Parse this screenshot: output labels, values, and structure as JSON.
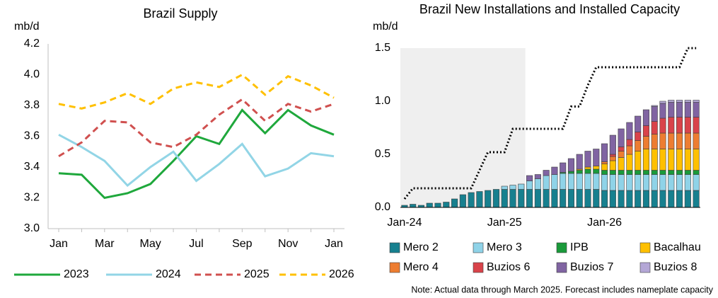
{
  "chart_data": [
    {
      "type": "line",
      "title": "Brazil Supply",
      "y_label": "mb/d",
      "categories": [
        "Jan",
        null,
        "Mar",
        null,
        "May",
        null,
        "Jul",
        null,
        "Sep",
        null,
        "Nov",
        null,
        "Jan"
      ],
      "ylim": [
        3.0,
        4.2
      ],
      "yticks": [
        {
          "value": 3.0,
          "label": "3.0"
        },
        3.2,
        3.4,
        3.6,
        3.8,
        {
          "value": 4.0,
          "label": "4.0"
        },
        4.2
      ],
      "legend": "bottom",
      "series": [
        {
          "name": "2023",
          "color": "#1fa83c",
          "dash": "solid",
          "values": [
            3.36,
            3.35,
            3.2,
            3.23,
            3.29,
            3.44,
            3.6,
            3.55,
            3.77,
            3.62,
            3.77,
            3.67,
            3.61
          ]
        },
        {
          "name": "2024",
          "color": "#92d5e6",
          "dash": "solid",
          "values": [
            3.61,
            3.53,
            3.44,
            3.28,
            3.4,
            3.5,
            3.31,
            3.42,
            3.55,
            3.34,
            3.39,
            3.49,
            3.47
          ]
        },
        {
          "name": "2025",
          "color": "#d0504f",
          "dash": "dashed",
          "values": [
            3.47,
            3.56,
            3.7,
            3.69,
            3.56,
            3.53,
            3.61,
            3.74,
            3.84,
            3.7,
            3.81,
            3.76,
            3.81
          ]
        },
        {
          "name": "2026",
          "color": "#ffc000",
          "dash": "dashed",
          "values": [
            3.81,
            3.78,
            3.82,
            3.88,
            3.81,
            3.91,
            3.95,
            3.92,
            4.0,
            3.87,
            3.99,
            3.93,
            3.85
          ]
        }
      ]
    },
    {
      "type": "bar",
      "stacked": true,
      "title": "Brazil New Installations and Installed Capacity",
      "y_label": "mb/d",
      "note": "Note: Actual data through March 2025. Forecast includes nameplate capacity",
      "categories": [
        "Jan-24",
        null,
        null,
        null,
        null,
        null,
        null,
        null,
        null,
        null,
        null,
        null,
        "Jan-25",
        null,
        null,
        null,
        null,
        null,
        null,
        null,
        null,
        null,
        null,
        null,
        "Jan-26",
        null,
        null,
        null,
        null,
        null,
        null,
        null,
        null,
        null,
        null,
        null
      ],
      "ylim": [
        0,
        1.5
      ],
      "yticks": [
        {
          "value": 0,
          "label": "0.0"
        },
        0.5,
        {
          "value": 1.0,
          "label": "1.0"
        },
        1.5
      ],
      "legend": "bottom",
      "series": [
        {
          "name": "Mero 2",
          "color": "#17808f",
          "values": [
            0.02,
            0.03,
            0.02,
            0.04,
            0.04,
            0.05,
            0.08,
            0.12,
            0.14,
            0.15,
            0.16,
            0.17,
            0.17,
            0.17,
            0.17,
            0.17,
            0.17,
            0.17,
            0.17,
            0.17,
            0.17,
            0.17,
            0.17,
            0.17,
            0.16,
            0.16,
            0.16,
            0.16,
            0.16,
            0.16,
            0.16,
            0.16,
            0.16,
            0.16,
            0.16,
            0.16
          ]
        },
        {
          "name": "Mero 3",
          "color": "#8fd3e8",
          "values": [
            0,
            0,
            0,
            0,
            0,
            0,
            0,
            0,
            0,
            0,
            0,
            0,
            0.03,
            0.04,
            0.05,
            0.08,
            0.1,
            0.13,
            0.14,
            0.15,
            0.15,
            0.15,
            0.15,
            0.15,
            0.15,
            0.15,
            0.15,
            0.15,
            0.15,
            0.15,
            0.15,
            0.15,
            0.15,
            0.15,
            0.15,
            0.15
          ]
        },
        {
          "name": "IPB",
          "color": "#1a9a3a",
          "values": [
            0,
            0,
            0,
            0,
            0,
            0,
            0,
            0,
            0,
            0,
            0,
            0,
            0,
            0,
            0,
            0,
            0,
            0,
            0,
            0.01,
            0.02,
            0.03,
            0.04,
            0.04,
            0.04,
            0.04,
            0.04,
            0.04,
            0.04,
            0.04,
            0.04,
            0.04,
            0.04,
            0.04,
            0.04,
            0.04
          ]
        },
        {
          "name": "Bacalhau",
          "color": "#ffc000",
          "values": [
            0,
            0,
            0,
            0,
            0,
            0,
            0,
            0,
            0,
            0,
            0,
            0,
            0,
            0,
            0,
            0,
            0,
            0,
            0,
            0,
            0,
            0.01,
            0.02,
            0.03,
            0.06,
            0.09,
            0.12,
            0.15,
            0.18,
            0.2,
            0.2,
            0.2,
            0.2,
            0.2,
            0.2,
            0.2
          ]
        },
        {
          "name": "Mero 4",
          "color": "#ed7d31",
          "values": [
            0,
            0,
            0,
            0,
            0,
            0,
            0,
            0,
            0,
            0,
            0,
            0,
            0,
            0,
            0,
            0,
            0,
            0,
            0,
            0,
            0,
            0,
            0,
            0,
            0.02,
            0.04,
            0.06,
            0.08,
            0.1,
            0.12,
            0.14,
            0.15,
            0.15,
            0.15,
            0.15,
            0.15
          ]
        },
        {
          "name": "Buzios 6",
          "color": "#d9434a",
          "values": [
            0,
            0,
            0,
            0,
            0,
            0,
            0,
            0,
            0,
            0,
            0,
            0,
            0,
            0,
            0,
            0,
            0,
            0,
            0,
            0,
            0,
            0,
            0,
            0,
            0,
            0.02,
            0.04,
            0.06,
            0.08,
            0.1,
            0.12,
            0.14,
            0.15,
            0.15,
            0.15,
            0.15
          ]
        },
        {
          "name": "Buzios 7",
          "color": "#8064a2",
          "values": [
            0,
            0,
            0,
            0,
            0,
            0,
            0,
            0,
            0,
            0,
            0,
            0,
            0,
            0,
            0,
            0.05,
            0.04,
            0.05,
            0.07,
            0.09,
            0.12,
            0.14,
            0.15,
            0.16,
            0.17,
            0.18,
            0.17,
            0.16,
            0.15,
            0.15,
            0.14,
            0.14,
            0.14,
            0.14,
            0.14,
            0.14
          ]
        },
        {
          "name": "Buzios 8",
          "color": "#b4a7d6",
          "values": [
            0,
            0,
            0,
            0,
            0,
            0,
            0,
            0,
            0,
            0,
            0,
            0,
            0,
            0,
            0,
            0,
            0,
            0,
            0,
            0,
            0,
            0,
            0,
            0,
            0,
            0,
            0,
            0,
            0,
            0,
            0.01,
            0.02,
            0.02,
            0.02,
            0.02,
            0.02
          ]
        }
      ],
      "line": {
        "color": "#000000",
        "values": [
          0.08,
          0.18,
          0.18,
          0.18,
          0.18,
          0.18,
          0.18,
          0.18,
          0.18,
          0.35,
          0.52,
          0.52,
          0.52,
          0.74,
          0.74,
          0.74,
          0.74,
          0.74,
          0.74,
          0.74,
          0.95,
          0.95,
          1.15,
          1.32,
          1.32,
          1.32,
          1.32,
          1.32,
          1.32,
          1.32,
          1.32,
          1.32,
          1.32,
          1.32,
          1.5,
          1.5
        ]
      }
    }
  ]
}
